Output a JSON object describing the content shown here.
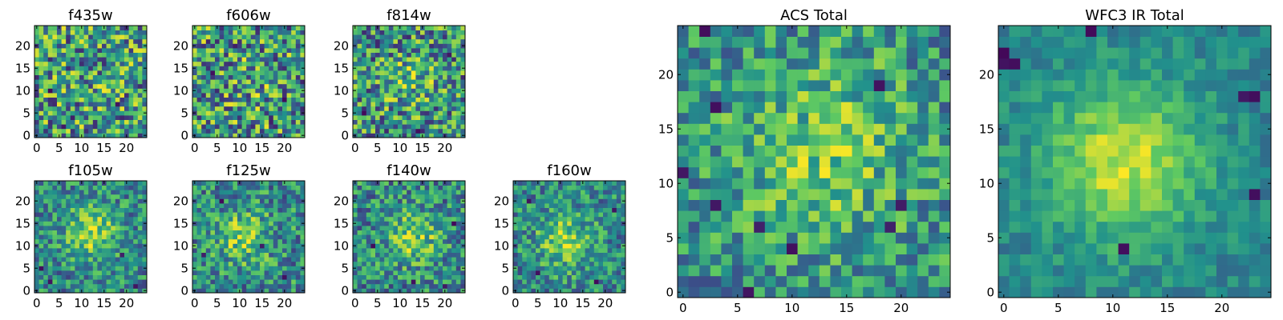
{
  "colormap": [
    "#440154",
    "#3b528b",
    "#21918c",
    "#5ec962",
    "#fde725"
  ],
  "chart_data": [
    {
      "type": "heatmap",
      "title": "f435w",
      "grid_size": 25,
      "xticks": [
        0,
        5,
        10,
        15,
        20
      ],
      "yticks": [
        0,
        5,
        10,
        15,
        20
      ],
      "seed": 11,
      "noise": 0.85,
      "signal": 0.05,
      "center": [
        12,
        12
      ],
      "sigma": 4,
      "dark_pixels": [
        [
          6,
          2
        ],
        [
          8,
          4
        ],
        [
          3,
          10
        ],
        [
          18,
          7
        ]
      ]
    },
    {
      "type": "heatmap",
      "title": "f606w",
      "grid_size": 25,
      "xticks": [
        0,
        5,
        10,
        15,
        20
      ],
      "yticks": [
        0,
        5,
        10,
        15,
        20
      ],
      "seed": 23,
      "noise": 0.85,
      "signal": 0.08,
      "center": [
        12,
        12
      ],
      "sigma": 4,
      "dark_pixels": [
        [
          4,
          14
        ],
        [
          20,
          8
        ],
        [
          17,
          3
        ],
        [
          9,
          20
        ]
      ]
    },
    {
      "type": "heatmap",
      "title": "f814w",
      "grid_size": 25,
      "xticks": [
        0,
        5,
        10,
        15,
        20
      ],
      "yticks": [
        0,
        5,
        10,
        15,
        20
      ],
      "seed": 37,
      "noise": 0.8,
      "signal": 0.25,
      "center": [
        12,
        12
      ],
      "sigma": 4,
      "dark_pixels": [
        [
          2,
          5
        ],
        [
          14,
          1
        ],
        [
          21,
          18
        ]
      ]
    },
    {
      "type": "heatmap",
      "title": "f105w",
      "grid_size": 25,
      "xticks": [
        0,
        5,
        10,
        15,
        20
      ],
      "yticks": [
        0,
        5,
        10,
        15,
        20
      ],
      "seed": 41,
      "noise": 0.55,
      "signal": 0.55,
      "center": [
        12,
        13
      ],
      "sigma": 4,
      "dark_pixels": [
        [
          1,
          5
        ],
        [
          19,
          8
        ],
        [
          3,
          2
        ],
        [
          22,
          1
        ]
      ]
    },
    {
      "type": "heatmap",
      "title": "f125w",
      "grid_size": 25,
      "xticks": [
        0,
        5,
        10,
        15,
        20
      ],
      "yticks": [
        0,
        5,
        10,
        15,
        20
      ],
      "seed": 53,
      "noise": 0.6,
      "signal": 0.45,
      "center": [
        11,
        12
      ],
      "sigma": 4,
      "dark_pixels": [
        [
          20,
          3
        ],
        [
          15,
          10
        ],
        [
          6,
          20
        ],
        [
          2,
          8
        ]
      ]
    },
    {
      "type": "heatmap",
      "title": "f140w",
      "grid_size": 25,
      "xticks": [
        0,
        5,
        10,
        15,
        20
      ],
      "yticks": [
        0,
        5,
        10,
        15,
        20
      ],
      "seed": 67,
      "noise": 0.6,
      "signal": 0.45,
      "center": [
        13,
        12
      ],
      "sigma": 4,
      "dark_pixels": [
        [
          20,
          1
        ],
        [
          4,
          10
        ],
        [
          13,
          2
        ],
        [
          22,
          15
        ]
      ]
    },
    {
      "type": "heatmap",
      "title": "f160w",
      "grid_size": 25,
      "xticks": [
        0,
        5,
        10,
        15,
        20
      ],
      "yticks": [
        0,
        5,
        10,
        15,
        20
      ],
      "seed": 79,
      "noise": 0.55,
      "signal": 0.5,
      "center": [
        11,
        11
      ],
      "sigma": 4,
      "dark_pixels": [
        [
          3,
          20
        ],
        [
          18,
          2
        ],
        [
          22,
          18
        ],
        [
          5,
          4
        ]
      ]
    },
    {
      "type": "heatmap",
      "title": "ACS Total",
      "grid_size": 25,
      "xticks": [
        0,
        5,
        10,
        15,
        20
      ],
      "yticks": [
        0,
        5,
        10,
        15,
        20
      ],
      "seed": 97,
      "noise": 0.55,
      "signal": 0.35,
      "center": [
        13,
        13
      ],
      "sigma": 6,
      "dark_pixels": [
        [
          0,
          11
        ],
        [
          3,
          17
        ],
        [
          3,
          8
        ],
        [
          7,
          6
        ],
        [
          10,
          4
        ],
        [
          6,
          0
        ],
        [
          2,
          24
        ],
        [
          18,
          19
        ],
        [
          20,
          8
        ],
        [
          19,
          6
        ]
      ]
    },
    {
      "type": "heatmap",
      "title": "WFC3 IR Total",
      "grid_size": 25,
      "xticks": [
        0,
        5,
        10,
        15,
        20
      ],
      "yticks": [
        0,
        5,
        10,
        15,
        20
      ],
      "seed": 113,
      "noise": 0.25,
      "signal": 0.65,
      "center": [
        11,
        12
      ],
      "sigma": 5,
      "dark_pixels": [
        [
          0,
          21
        ],
        [
          1,
          21
        ],
        [
          0,
          22
        ],
        [
          22,
          18
        ],
        [
          23,
          18
        ],
        [
          8,
          24
        ],
        [
          11,
          4
        ],
        [
          23,
          9
        ]
      ]
    }
  ]
}
